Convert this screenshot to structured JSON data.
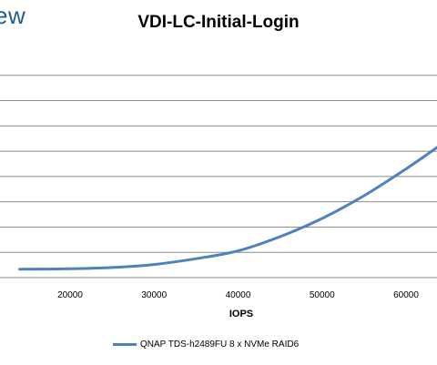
{
  "brand": {
    "text": "ew"
  },
  "chart_data": {
    "type": "line",
    "title": "VDI-LC-Initial-Login",
    "xlabel": "IOPS",
    "ylabel": "",
    "xlim": [
      14000,
      64000
    ],
    "ylim": [
      0,
      9
    ],
    "x_ticks": [
      20000,
      30000,
      40000,
      50000,
      60000
    ],
    "x_tick_labels": [
      "20000",
      "30000",
      "40000",
      "50000",
      "60000"
    ],
    "grid": true,
    "legend_position": "bottom",
    "series": [
      {
        "name": "QNAP TDS-h2489FU 8 x NVMe RAID6",
        "color": "#4f81bd",
        "x": [
          14000,
          20000,
          25000,
          30000,
          35000,
          40000,
          45000,
          50000,
          55000,
          60000,
          64000
        ],
        "y": [
          0.33,
          0.35,
          0.4,
          0.52,
          0.75,
          1.06,
          1.62,
          2.34,
          3.24,
          4.3,
          5.22
        ]
      }
    ]
  }
}
